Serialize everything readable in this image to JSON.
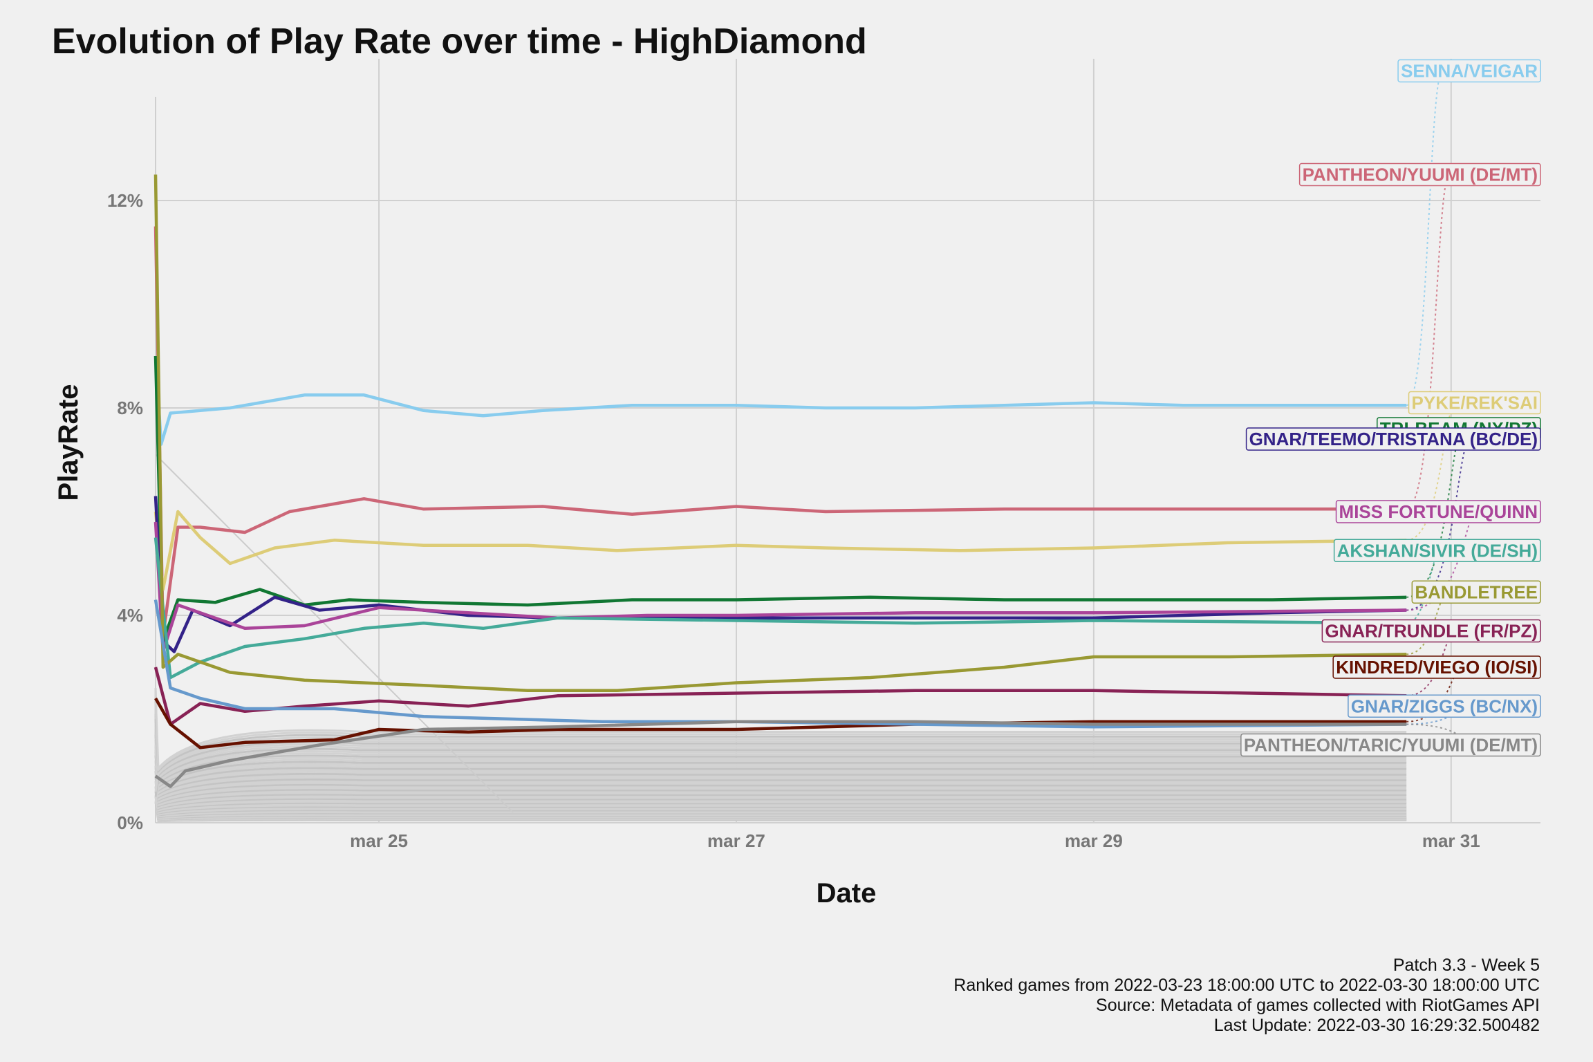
{
  "chart_data": {
    "type": "line",
    "title": "Evolution of Play Rate over time - HighDiamond",
    "xlabel": "Date",
    "ylabel": "PlayRate",
    "x_ticks": [
      {
        "date": "2022-03-25",
        "label": "mar 25"
      },
      {
        "date": "2022-03-27",
        "label": "mar 27"
      },
      {
        "date": "2022-03-29",
        "label": "mar 29"
      },
      {
        "date": "2022-03-31",
        "label": "mar 31"
      }
    ],
    "xlim": [
      "2022-03-23 18:00",
      "2022-03-31 12:00"
    ],
    "y_ticks": [
      0,
      4,
      8,
      12
    ],
    "y_tick_labels": [
      "0%",
      "4%",
      "8%",
      "12%"
    ],
    "ylim": [
      0,
      14
    ],
    "grid": true,
    "legend": "direct labels on the right",
    "series": [
      {
        "name": "SENNA/VEIGAR",
        "color": "#88ccee",
        "points": [
          [
            "2022-03-23 18:00",
            9.0
          ],
          [
            "2022-03-23 18:45",
            7.3
          ],
          [
            "2022-03-23 20:00",
            7.9
          ],
          [
            "2022-03-24 04:00",
            8.0
          ],
          [
            "2022-03-24 14:00",
            8.25
          ],
          [
            "2022-03-24 22:00",
            8.25
          ],
          [
            "2022-03-25 06:00",
            7.95
          ],
          [
            "2022-03-25 14:00",
            7.85
          ],
          [
            "2022-03-25 22:00",
            7.95
          ],
          [
            "2022-03-26 10:00",
            8.05
          ],
          [
            "2022-03-27 00:00",
            8.05
          ],
          [
            "2022-03-27 12:00",
            8.0
          ],
          [
            "2022-03-28 00:00",
            8.0
          ],
          [
            "2022-03-28 12:00",
            8.05
          ],
          [
            "2022-03-29 00:00",
            8.1
          ],
          [
            "2022-03-29 12:00",
            8.05
          ],
          [
            "2022-03-30 18:00",
            8.05
          ]
        ]
      },
      {
        "name": "PANTHEON/YUUMI (DE/MT)",
        "color": "#cc6677",
        "points": [
          [
            "2022-03-23 18:00",
            11.5
          ],
          [
            "2022-03-23 19:00",
            3.6
          ],
          [
            "2022-03-23 21:00",
            5.7
          ],
          [
            "2022-03-24 00:00",
            5.7
          ],
          [
            "2022-03-24 06:00",
            5.6
          ],
          [
            "2022-03-24 12:00",
            6.0
          ],
          [
            "2022-03-24 22:00",
            6.25
          ],
          [
            "2022-03-25 06:00",
            6.05
          ],
          [
            "2022-03-25 22:00",
            6.1
          ],
          [
            "2022-03-26 10:00",
            5.95
          ],
          [
            "2022-03-27 00:00",
            6.1
          ],
          [
            "2022-03-27 12:00",
            6.0
          ],
          [
            "2022-03-28 12:00",
            6.05
          ],
          [
            "2022-03-29 12:00",
            6.05
          ],
          [
            "2022-03-30 18:00",
            6.05
          ]
        ]
      },
      {
        "name": "PYKE/REK'SAI",
        "color": "#ddcc77",
        "points": [
          [
            "2022-03-23 18:00",
            6.0
          ],
          [
            "2022-03-23 19:00",
            4.5
          ],
          [
            "2022-03-23 21:00",
            6.0
          ],
          [
            "2022-03-24 00:00",
            5.5
          ],
          [
            "2022-03-24 04:00",
            5.0
          ],
          [
            "2022-03-24 10:00",
            5.3
          ],
          [
            "2022-03-24 18:00",
            5.45
          ],
          [
            "2022-03-25 06:00",
            5.35
          ],
          [
            "2022-03-25 20:00",
            5.35
          ],
          [
            "2022-03-26 08:00",
            5.25
          ],
          [
            "2022-03-27 00:00",
            5.35
          ],
          [
            "2022-03-27 12:00",
            5.3
          ],
          [
            "2022-03-28 06:00",
            5.25
          ],
          [
            "2022-03-29 00:00",
            5.3
          ],
          [
            "2022-03-29 18:00",
            5.4
          ],
          [
            "2022-03-30 18:00",
            5.45
          ]
        ]
      },
      {
        "name": "TRI-BEAM (NX/PZ)",
        "color": "#117733",
        "points": [
          [
            "2022-03-23 18:00",
            9.0
          ],
          [
            "2022-03-23 19:00",
            3.5
          ],
          [
            "2022-03-23 21:00",
            4.3
          ],
          [
            "2022-03-24 02:00",
            4.25
          ],
          [
            "2022-03-24 08:00",
            4.5
          ],
          [
            "2022-03-24 14:00",
            4.2
          ],
          [
            "2022-03-24 20:00",
            4.3
          ],
          [
            "2022-03-25 06:00",
            4.25
          ],
          [
            "2022-03-25 20:00",
            4.2
          ],
          [
            "2022-03-26 10:00",
            4.3
          ],
          [
            "2022-03-27 00:00",
            4.3
          ],
          [
            "2022-03-27 18:00",
            4.35
          ],
          [
            "2022-03-28 12:00",
            4.3
          ],
          [
            "2022-03-29 06:00",
            4.3
          ],
          [
            "2022-03-30 00:00",
            4.3
          ],
          [
            "2022-03-30 18:00",
            4.35
          ]
        ]
      },
      {
        "name": "GNAR/TEEMO/TRISTANA (BC/DE)",
        "color": "#332288",
        "points": [
          [
            "2022-03-23 18:00",
            6.3
          ],
          [
            "2022-03-23 19:00",
            3.5
          ],
          [
            "2022-03-23 20:30",
            3.3
          ],
          [
            "2022-03-23 23:00",
            4.1
          ],
          [
            "2022-03-24 04:00",
            3.8
          ],
          [
            "2022-03-24 10:00",
            4.35
          ],
          [
            "2022-03-24 16:00",
            4.1
          ],
          [
            "2022-03-25 00:00",
            4.2
          ],
          [
            "2022-03-25 12:00",
            4.0
          ],
          [
            "2022-03-26 00:00",
            3.95
          ],
          [
            "2022-03-26 12:00",
            3.95
          ],
          [
            "2022-03-27 00:00",
            3.95
          ],
          [
            "2022-03-28 00:00",
            3.95
          ],
          [
            "2022-03-29 00:00",
            3.95
          ],
          [
            "2022-03-30 00:00",
            4.05
          ],
          [
            "2022-03-30 18:00",
            4.1
          ]
        ]
      },
      {
        "name": "MISS FORTUNE/QUINN",
        "color": "#aa4499",
        "points": [
          [
            "2022-03-23 18:00",
            5.8
          ],
          [
            "2022-03-23 19:00",
            3.3
          ],
          [
            "2022-03-23 21:00",
            4.2
          ],
          [
            "2022-03-24 06:00",
            3.75
          ],
          [
            "2022-03-24 14:00",
            3.8
          ],
          [
            "2022-03-25 00:00",
            4.15
          ],
          [
            "2022-03-25 12:00",
            4.05
          ],
          [
            "2022-03-26 00:00",
            3.95
          ],
          [
            "2022-03-26 12:00",
            4.0
          ],
          [
            "2022-03-27 00:00",
            4.0
          ],
          [
            "2022-03-28 00:00",
            4.05
          ],
          [
            "2022-03-29 00:00",
            4.05
          ],
          [
            "2022-03-30 18:00",
            4.1
          ]
        ]
      },
      {
        "name": "AKSHAN/SIVIR (DE/SH)",
        "color": "#44aa99",
        "points": [
          [
            "2022-03-23 18:00",
            5.5
          ],
          [
            "2022-03-23 20:00",
            2.8
          ],
          [
            "2022-03-24 00:00",
            3.1
          ],
          [
            "2022-03-24 06:00",
            3.4
          ],
          [
            "2022-03-24 14:00",
            3.55
          ],
          [
            "2022-03-24 22:00",
            3.75
          ],
          [
            "2022-03-25 06:00",
            3.85
          ],
          [
            "2022-03-25 14:00",
            3.75
          ],
          [
            "2022-03-26 00:00",
            3.95
          ],
          [
            "2022-03-27 00:00",
            3.9
          ],
          [
            "2022-03-28 00:00",
            3.85
          ],
          [
            "2022-03-29 00:00",
            3.9
          ],
          [
            "2022-03-30 18:00",
            3.85
          ]
        ]
      },
      {
        "name": "BANDLETREE",
        "color": "#999933",
        "points": [
          [
            "2022-03-23 18:00",
            12.5
          ],
          [
            "2022-03-23 19:00",
            3.0
          ],
          [
            "2022-03-23 21:00",
            3.25
          ],
          [
            "2022-03-24 04:00",
            2.9
          ],
          [
            "2022-03-24 14:00",
            2.75
          ],
          [
            "2022-03-25 06:00",
            2.65
          ],
          [
            "2022-03-25 20:00",
            2.55
          ],
          [
            "2022-03-26 08:00",
            2.55
          ],
          [
            "2022-03-27 00:00",
            2.7
          ],
          [
            "2022-03-27 18:00",
            2.8
          ],
          [
            "2022-03-28 12:00",
            3.0
          ],
          [
            "2022-03-29 00:00",
            3.2
          ],
          [
            "2022-03-29 18:00",
            3.2
          ],
          [
            "2022-03-30 18:00",
            3.25
          ]
        ]
      },
      {
        "name": "GNAR/TRUNDLE (FR/PZ)",
        "color": "#882255",
        "points": [
          [
            "2022-03-23 18:00",
            3.0
          ],
          [
            "2022-03-23 20:00",
            1.9
          ],
          [
            "2022-03-24 00:00",
            2.3
          ],
          [
            "2022-03-24 06:00",
            2.15
          ],
          [
            "2022-03-24 14:00",
            2.25
          ],
          [
            "2022-03-25 00:00",
            2.35
          ],
          [
            "2022-03-25 12:00",
            2.25
          ],
          [
            "2022-03-26 00:00",
            2.45
          ],
          [
            "2022-03-27 00:00",
            2.5
          ],
          [
            "2022-03-28 00:00",
            2.55
          ],
          [
            "2022-03-29 00:00",
            2.55
          ],
          [
            "2022-03-30 18:00",
            2.45
          ]
        ]
      },
      {
        "name": "KINDRED/VIEGO (IO/SI)",
        "color": "#661100",
        "points": [
          [
            "2022-03-23 18:00",
            2.4
          ],
          [
            "2022-03-23 20:00",
            1.9
          ],
          [
            "2022-03-24 00:00",
            1.45
          ],
          [
            "2022-03-24 06:00",
            1.55
          ],
          [
            "2022-03-24 18:00",
            1.6
          ],
          [
            "2022-03-25 00:00",
            1.8
          ],
          [
            "2022-03-25 12:00",
            1.75
          ],
          [
            "2022-03-26 00:00",
            1.8
          ],
          [
            "2022-03-27 00:00",
            1.8
          ],
          [
            "2022-03-28 00:00",
            1.9
          ],
          [
            "2022-03-29 00:00",
            1.95
          ],
          [
            "2022-03-30 18:00",
            1.95
          ]
        ]
      },
      {
        "name": "GNAR/ZIGGS (BC/NX)",
        "color": "#6699cc",
        "points": [
          [
            "2022-03-23 18:00",
            4.3
          ],
          [
            "2022-03-23 20:00",
            2.6
          ],
          [
            "2022-03-24 00:00",
            2.4
          ],
          [
            "2022-03-24 06:00",
            2.2
          ],
          [
            "2022-03-24 18:00",
            2.2
          ],
          [
            "2022-03-25 06:00",
            2.05
          ],
          [
            "2022-03-25 18:00",
            2.0
          ],
          [
            "2022-03-26 06:00",
            1.95
          ],
          [
            "2022-03-27 00:00",
            1.95
          ],
          [
            "2022-03-28 00:00",
            1.9
          ],
          [
            "2022-03-29 00:00",
            1.85
          ],
          [
            "2022-03-30 18:00",
            1.9
          ]
        ]
      },
      {
        "name": "PANTHEON/TARIC/YUUMI (DE/MT)",
        "color": "#888888",
        "points": [
          [
            "2022-03-23 18:00",
            0.9
          ],
          [
            "2022-03-23 20:00",
            0.7
          ],
          [
            "2022-03-23 22:00",
            1.0
          ],
          [
            "2022-03-24 04:00",
            1.2
          ],
          [
            "2022-03-24 16:00",
            1.5
          ],
          [
            "2022-03-25 06:00",
            1.8
          ],
          [
            "2022-03-26 00:00",
            1.85
          ],
          [
            "2022-03-27 00:00",
            1.95
          ],
          [
            "2022-03-28 00:00",
            1.95
          ],
          [
            "2022-03-29 00:00",
            1.9
          ],
          [
            "2022-03-30 18:00",
            1.9
          ]
        ]
      }
    ],
    "label_positions": [
      {
        "series": "SENNA/VEIGAR",
        "y": 14.5
      },
      {
        "series": "PANTHEON/YUUMI (DE/MT)",
        "y": 12.5
      },
      {
        "series": "PYKE/REK'SAI",
        "y": 8.1
      },
      {
        "series": "TRI-BEAM (NX/PZ)",
        "y": 7.6
      },
      {
        "series": "GNAR/TEEMO/TRISTANA (BC/DE)",
        "y": 7.4
      },
      {
        "series": "MISS FORTUNE/QUINN",
        "y": 6.0
      },
      {
        "series": "AKSHAN/SIVIR (DE/SH)",
        "y": 5.25
      },
      {
        "series": "BANDLETREE",
        "y": 4.45
      },
      {
        "series": "GNAR/TRUNDLE (FR/PZ)",
        "y": 3.7
      },
      {
        "series": "KINDRED/VIEGO (IO/SI)",
        "y": 3.0
      },
      {
        "series": "GNAR/ZIGGS (BC/NX)",
        "y": 2.25
      },
      {
        "series": "PANTHEON/TARIC/YUUMI (DE/MT)",
        "y": 1.5
      }
    ],
    "background_series_note": "",
    "caption": [
      "Patch 3.3 - Week 5",
      "Ranked games from 2022-03-23 18:00:00 UTC to 2022-03-30 18:00:00 UTC",
      "Source: Metadata of games collected with RiotGames API",
      "Last Update: 2022-03-30 16:29:32.500482"
    ]
  }
}
